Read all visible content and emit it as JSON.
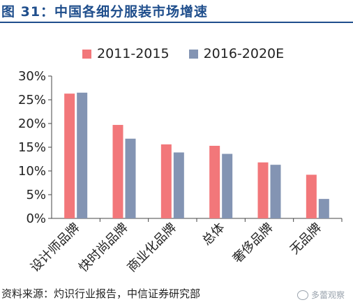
{
  "title": "图 31：中国各细分服装市场增速",
  "source": "资料来源：灼识行业报告，中信证券研究部",
  "watermark": "多蕾观察",
  "colors": {
    "series1": "#f2777a",
    "series2": "#8394b3",
    "title": "#1f4e8c"
  },
  "chart_data": {
    "type": "bar",
    "categories": [
      "设计师品牌",
      "快时尚品牌",
      "商业化品牌",
      "总体",
      "奢侈品牌",
      "无品牌"
    ],
    "series": [
      {
        "name": "2011-2015",
        "values": [
          26.3,
          19.7,
          15.6,
          15.3,
          11.8,
          9.2
        ]
      },
      {
        "name": "2016-2020E",
        "values": [
          26.5,
          16.8,
          13.9,
          13.6,
          11.3,
          4.1
        ]
      }
    ],
    "y_ticks": [
      "0%",
      "5%",
      "10%",
      "15%",
      "20%",
      "25%",
      "30%"
    ],
    "ylim": [
      0,
      30
    ],
    "grid": false,
    "legend_position": "top"
  }
}
